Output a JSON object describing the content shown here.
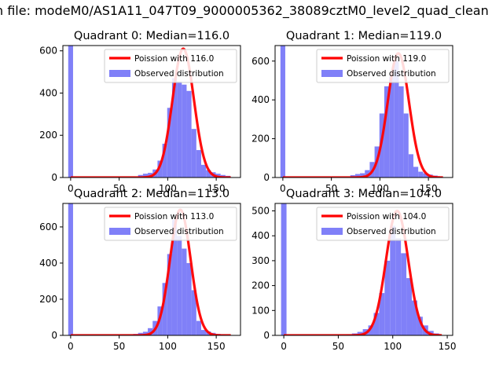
{
  "figure": {
    "suptitle": "n file: modeM0/AS1A11_047T09_9000005362_38089cztM0_level2_quad_clean"
  },
  "colors": {
    "observed": "#8080f8",
    "poisson": "#ff0000"
  },
  "chart_data": [
    {
      "type": "bar",
      "title": "Quadrant 0: Median=116.0",
      "xlim": [
        -8,
        175
      ],
      "ylim": [
        0,
        625
      ],
      "xticks": [
        0,
        50,
        100,
        150
      ],
      "yticks": [
        0,
        200,
        400,
        600
      ],
      "legend": {
        "location": "top-right",
        "entries": [
          "Poission with 116.0",
          "Observed distribution"
        ]
      },
      "observed_bins": [
        [
          0,
          625
        ],
        [
          72,
          12
        ],
        [
          77,
          18
        ],
        [
          82,
          22
        ],
        [
          87,
          38
        ],
        [
          92,
          80
        ],
        [
          97,
          160
        ],
        [
          102,
          330
        ],
        [
          107,
          470
        ],
        [
          112,
          455
        ],
        [
          117,
          440
        ],
        [
          122,
          410
        ],
        [
          127,
          230
        ],
        [
          132,
          130
        ],
        [
          137,
          60
        ],
        [
          142,
          35
        ],
        [
          147,
          25
        ],
        [
          152,
          18
        ],
        [
          157,
          12
        ],
        [
          162,
          8
        ]
      ],
      "bin_width": 5,
      "poisson": {
        "label": "Poission with 116.0",
        "mean": 116.0,
        "peak": 610,
        "sigma": 11,
        "x_range": [
          0,
          165
        ]
      }
    },
    {
      "type": "bar",
      "title": "Quadrant 1: Median=119.0",
      "xlim": [
        -8,
        175
      ],
      "ylim": [
        0,
        680
      ],
      "xticks": [
        0,
        50,
        100,
        150
      ],
      "yticks": [
        0,
        200,
        400,
        600
      ],
      "legend": {
        "location": "top-right",
        "entries": [
          "Poission with 119.0",
          "Observed distribution"
        ]
      },
      "observed_bins": [
        [
          0,
          680
        ],
        [
          72,
          12
        ],
        [
          77,
          18
        ],
        [
          82,
          22
        ],
        [
          87,
          38
        ],
        [
          92,
          80
        ],
        [
          97,
          160
        ],
        [
          102,
          330
        ],
        [
          107,
          470
        ],
        [
          112,
          520
        ],
        [
          117,
          600
        ],
        [
          122,
          470
        ],
        [
          127,
          330
        ],
        [
          132,
          120
        ],
        [
          137,
          55
        ],
        [
          142,
          30
        ],
        [
          147,
          22
        ],
        [
          152,
          15
        ],
        [
          157,
          10
        ],
        [
          162,
          6
        ]
      ],
      "bin_width": 5,
      "poisson": {
        "label": "Poission with 119.0",
        "mean": 119.0,
        "peak": 640,
        "sigma": 11,
        "x_range": [
          0,
          165
        ]
      }
    },
    {
      "type": "bar",
      "title": "Quadrant 2: Median=113.0",
      "xlim": [
        -8,
        175
      ],
      "ylim": [
        0,
        730
      ],
      "xticks": [
        0,
        50,
        100,
        150
      ],
      "yticks": [
        0,
        200,
        400,
        600
      ],
      "legend": {
        "location": "top-right",
        "entries": [
          "Poission with 113.0",
          "Observed distribution"
        ]
      },
      "observed_bins": [
        [
          0,
          730
        ],
        [
          67,
          8
        ],
        [
          72,
          14
        ],
        [
          77,
          20
        ],
        [
          82,
          40
        ],
        [
          87,
          80
        ],
        [
          92,
          160
        ],
        [
          97,
          290
        ],
        [
          102,
          450
        ],
        [
          107,
          640
        ],
        [
          112,
          550
        ],
        [
          117,
          480
        ],
        [
          122,
          400
        ],
        [
          127,
          250
        ],
        [
          132,
          80
        ],
        [
          137,
          30
        ],
        [
          142,
          22
        ],
        [
          147,
          14
        ],
        [
          152,
          8
        ],
        [
          157,
          5
        ],
        [
          162,
          3
        ]
      ],
      "bin_width": 5,
      "poisson": {
        "label": "Poission with 113.0",
        "mean": 113.0,
        "peak": 695,
        "sigma": 10.6,
        "x_range": [
          0,
          165
        ]
      }
    },
    {
      "type": "bar",
      "title": "Quadrant 3: Median=104.0",
      "xlim": [
        -8,
        155
      ],
      "ylim": [
        0,
        530
      ],
      "xticks": [
        0,
        50,
        100,
        150
      ],
      "yticks": [
        0,
        100,
        200,
        300,
        400,
        500
      ],
      "legend": {
        "location": "top-right",
        "entries": [
          "Poission with 104.0",
          "Observed distribution"
        ]
      },
      "observed_bins": [
        [
          0,
          530
        ],
        [
          60,
          4
        ],
        [
          65,
          8
        ],
        [
          70,
          14
        ],
        [
          75,
          25
        ],
        [
          80,
          40
        ],
        [
          85,
          90
        ],
        [
          90,
          170
        ],
        [
          95,
          300
        ],
        [
          100,
          440
        ],
        [
          105,
          390
        ],
        [
          110,
          330
        ],
        [
          115,
          230
        ],
        [
          120,
          140
        ],
        [
          125,
          75
        ],
        [
          130,
          40
        ],
        [
          135,
          18
        ],
        [
          140,
          8
        ]
      ],
      "bin_width": 5,
      "poisson": {
        "label": "Poission with 104.0",
        "mean": 104.0,
        "peak": 500,
        "sigma": 10.2,
        "x_range": [
          0,
          145
        ]
      }
    }
  ]
}
